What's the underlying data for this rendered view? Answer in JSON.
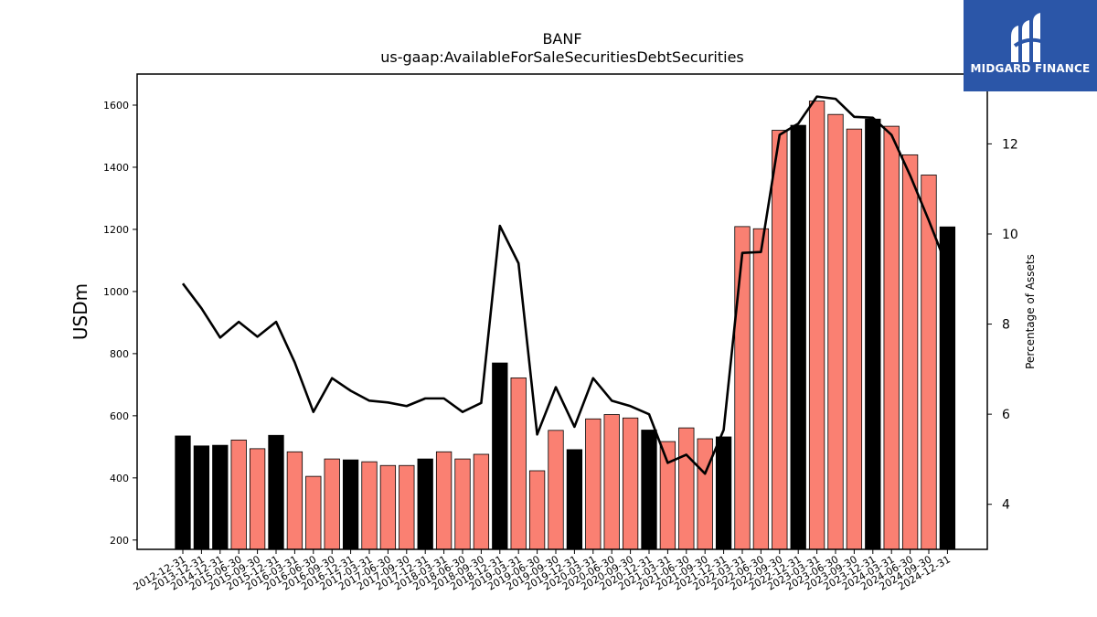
{
  "chart_data": {
    "type": "bar",
    "title": "BANF",
    "subtitle": "us-gaap:AvailableForSaleSecuritiesDebtSecurities",
    "ylabel": "USDm",
    "y2label": "Percentage of Assets",
    "ylim": [
      170,
      1700
    ],
    "y2lim": [
      3.0,
      13.55
    ],
    "yticks": [
      200,
      400,
      600,
      800,
      1000,
      1200,
      1400,
      1600
    ],
    "y2ticks": [
      4,
      6,
      8,
      10,
      12
    ],
    "grid": false,
    "categories": [
      "2012-12-31",
      "2013-12-31",
      "2014-12-31",
      "2015-06-30",
      "2015-09-30",
      "2015-12-31",
      "2016-03-31",
      "2016-06-30",
      "2016-09-30",
      "2016-12-31",
      "2017-03-31",
      "2017-06-30",
      "2017-09-30",
      "2017-12-31",
      "2018-03-31",
      "2018-06-30",
      "2018-09-30",
      "2018-12-31",
      "2019-03-31",
      "2019-06-30",
      "2019-09-30",
      "2019-12-31",
      "2020-03-31",
      "2020-06-30",
      "2020-09-30",
      "2020-12-31",
      "2021-03-31",
      "2021-06-30",
      "2021-09-30",
      "2021-12-31",
      "2022-03-31",
      "2022-06-30",
      "2022-09-30",
      "2022-12-31",
      "2023-03-31",
      "2023-06-30",
      "2023-09-30",
      "2023-12-31",
      "2024-03-31",
      "2024-06-30",
      "2024-09-30",
      "2024-12-31"
    ],
    "series": [
      {
        "type": "bar",
        "values": [
          535,
          503,
          505,
          522,
          494,
          537,
          484,
          405,
          461,
          458,
          452,
          440,
          440,
          461,
          484,
          461,
          476,
          770,
          722,
          423,
          553,
          491,
          590,
          604,
          593,
          554,
          517,
          561,
          526,
          532,
          1209,
          1202,
          1519,
          1535,
          1613,
          1570,
          1523,
          1555,
          1532,
          1440,
          1375,
          1208
        ]
      },
      {
        "type": "line",
        "axis": "right",
        "values": [
          8.9,
          8.35,
          7.7,
          8.05,
          7.72,
          8.05,
          7.15,
          6.05,
          6.8,
          6.52,
          6.3,
          6.26,
          6.18,
          6.35,
          6.35,
          6.05,
          6.25,
          10.18,
          9.35,
          5.55,
          6.6,
          5.72,
          6.8,
          6.3,
          6.18,
          6.0,
          4.92,
          5.1,
          4.68,
          5.65,
          9.58,
          9.6,
          12.2,
          12.45,
          13.05,
          13.0,
          12.6,
          12.58,
          12.2,
          11.3,
          10.3,
          9.25
        ]
      }
    ],
    "bar_colors": [
      "#000000",
      "#000000",
      "#000000",
      "#fa8072",
      "#fa8072",
      "#000000",
      "#fa8072",
      "#fa8072",
      "#fa8072",
      "#000000",
      "#fa8072",
      "#fa8072",
      "#fa8072",
      "#000000",
      "#fa8072",
      "#fa8072",
      "#fa8072",
      "#000000",
      "#fa8072",
      "#fa8072",
      "#fa8072",
      "#000000",
      "#fa8072",
      "#fa8072",
      "#fa8072",
      "#000000",
      "#fa8072",
      "#fa8072",
      "#fa8072",
      "#000000",
      "#fa8072",
      "#fa8072",
      "#fa8072",
      "#000000",
      "#fa8072",
      "#fa8072",
      "#fa8072",
      "#000000",
      "#fa8072",
      "#fa8072",
      "#fa8072",
      "#000000"
    ],
    "line_color": "#000000"
  },
  "logo": {
    "text": "MIDGARD FINANCE",
    "background": "#2b56a8"
  }
}
